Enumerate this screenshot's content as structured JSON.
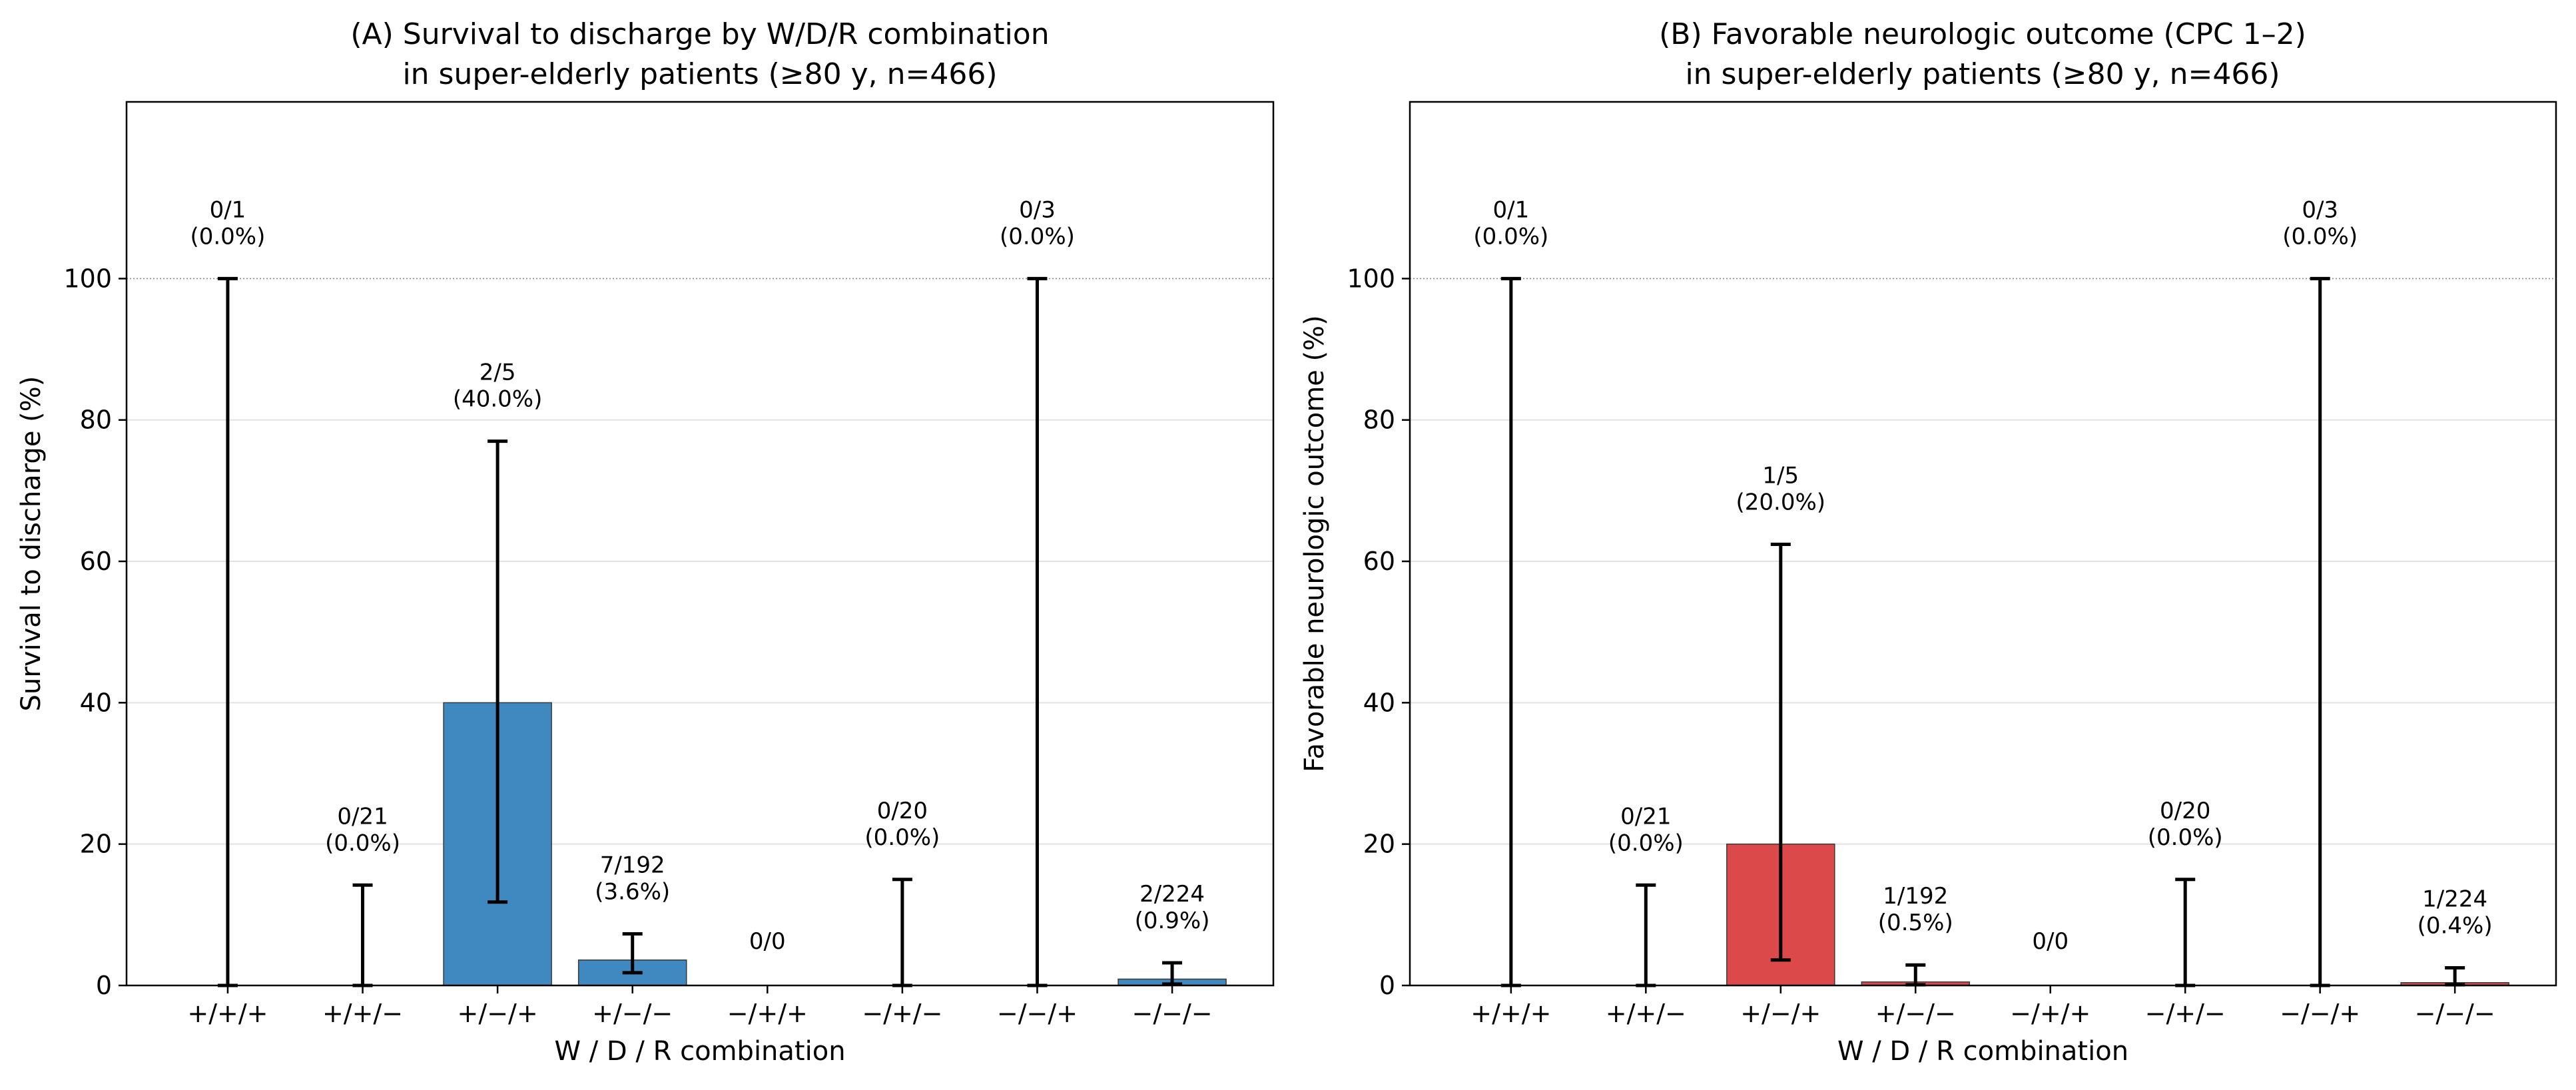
{
  "chart_data": [
    {
      "type": "bar",
      "title": "(A) Survival to discharge by W/D/R combination",
      "subtitle": "in super-elderly patients (≥80 y, n=466)",
      "xlabel": "W / D / R combination",
      "ylabel": "Survival to discharge (%)",
      "ylim": [
        0,
        125
      ],
      "yticks": [
        "0",
        "20",
        "40",
        "60",
        "80",
        "100"
      ],
      "reference_line": 100,
      "grid": true,
      "bar_color": "#3f89c0",
      "categories": [
        "+/+/+",
        "+/+/−",
        "+/−/+",
        "+/−/−",
        "−/+/+",
        "−/+/−",
        "−/−/+",
        "−/−/−"
      ],
      "values": [
        0,
        0,
        40,
        3.6,
        0,
        0,
        0,
        0.9
      ],
      "ci_low": [
        0,
        0,
        11.8,
        1.8,
        null,
        0,
        0,
        0.2
      ],
      "ci_high": [
        100,
        14.2,
        77,
        7.3,
        null,
        15,
        100,
        3.2
      ],
      "labels": [
        [
          "0/1",
          "(0.0%)"
        ],
        [
          "0/21",
          "(0.0%)"
        ],
        [
          "2/5",
          "(40.0%)"
        ],
        [
          "7/192",
          "(3.6%)"
        ],
        [
          "0/0"
        ],
        [
          "0/20",
          "(0.0%)"
        ],
        [
          "0/3",
          "(0.0%)"
        ],
        [
          "2/224",
          "(0.9%)"
        ]
      ]
    },
    {
      "type": "bar",
      "title": "(B) Favorable neurologic outcome (CPC 1–2)",
      "subtitle": "in super-elderly patients (≥80 y, n=466)",
      "xlabel": "W / D / R combination",
      "ylabel": "Favorable neurologic outcome (%)",
      "ylim": [
        0,
        125
      ],
      "yticks": [
        "0",
        "20",
        "40",
        "60",
        "80",
        "100"
      ],
      "reference_line": 100,
      "grid": true,
      "bar_color": "#dc494b",
      "categories": [
        "+/+/+",
        "+/+/−",
        "+/−/+",
        "+/−/−",
        "−/+/+",
        "−/+/−",
        "−/−/+",
        "−/−/−"
      ],
      "values": [
        0,
        0,
        20,
        0.5,
        0,
        0,
        0,
        0.4
      ],
      "ci_low": [
        0,
        0,
        3.6,
        0.1,
        null,
        0,
        0,
        0.1
      ],
      "ci_high": [
        100,
        14.2,
        62.4,
        2.9,
        null,
        15,
        100,
        2.5
      ],
      "labels": [
        [
          "0/1",
          "(0.0%)"
        ],
        [
          "0/21",
          "(0.0%)"
        ],
        [
          "1/5",
          "(20.0%)"
        ],
        [
          "1/192",
          "(0.5%)"
        ],
        [
          "0/0"
        ],
        [
          "0/20",
          "(0.0%)"
        ],
        [
          "0/3",
          "(0.0%)"
        ],
        [
          "1/224",
          "(0.4%)"
        ]
      ]
    }
  ]
}
